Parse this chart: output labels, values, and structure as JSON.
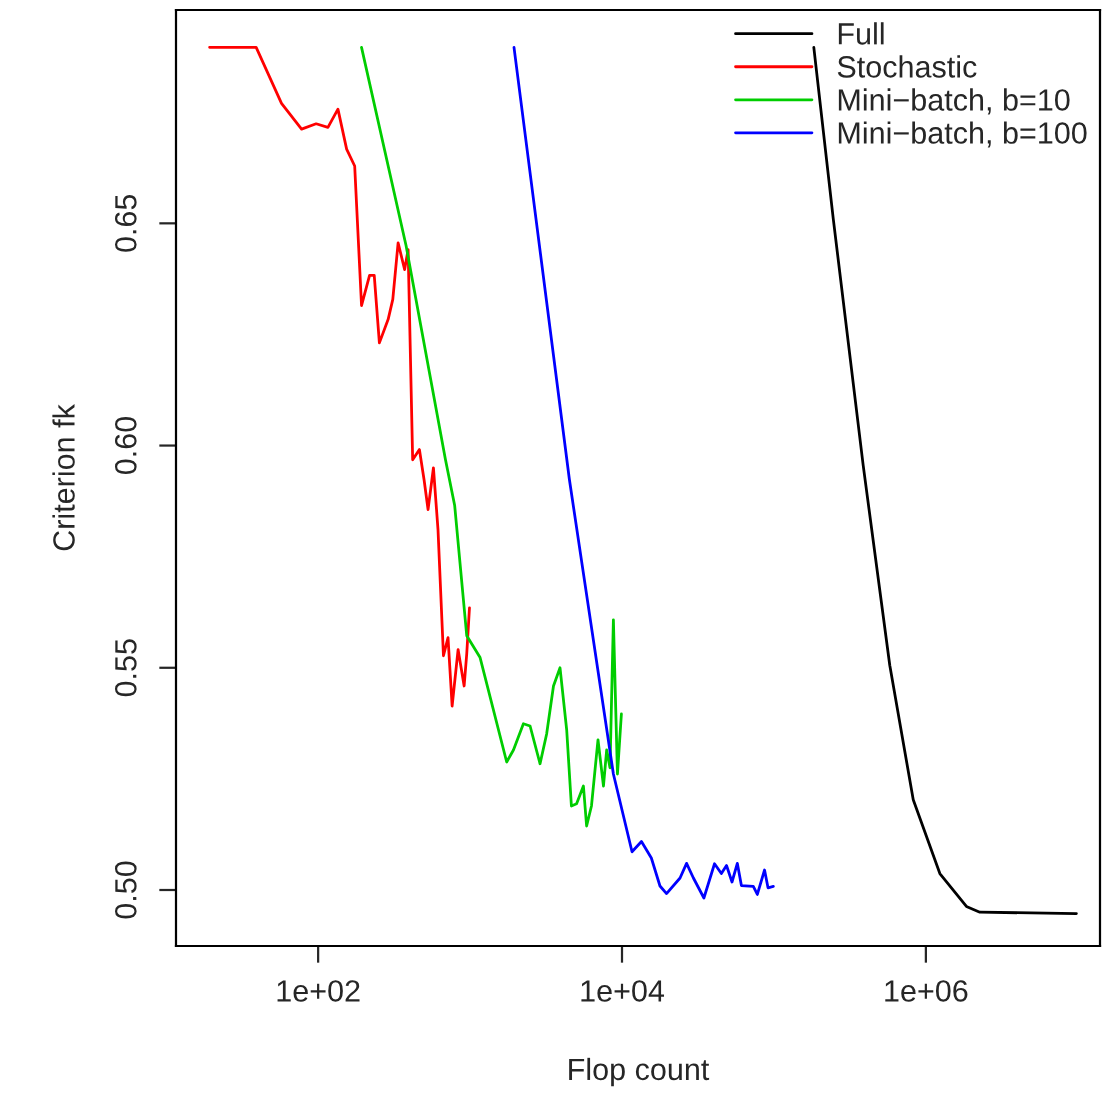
{
  "chart_data": {
    "type": "line",
    "xlabel": "Flop count",
    "ylabel": "Criterion fk",
    "log": "x",
    "xlim": [
      11.6,
      14000000
    ],
    "ylim": [
      0.4874,
      0.698
    ],
    "xticks": [
      {
        "value": 100,
        "label": "1e+02"
      },
      {
        "value": 10000,
        "label": "1e+04"
      },
      {
        "value": 1000000,
        "label": "1e+06"
      }
    ],
    "yticks": [
      {
        "value": 0.5,
        "label": "0.50"
      },
      {
        "value": 0.55,
        "label": "0.55"
      },
      {
        "value": 0.6,
        "label": "0.60"
      },
      {
        "value": 0.65,
        "label": "0.65"
      }
    ],
    "grid": false,
    "legend": "top right",
    "marker": "none",
    "line_style": "solid",
    "series": [
      {
        "name": "Full",
        "color": "#000000",
        "x": [
          183000,
          246000,
          387000,
          579000,
          826000,
          1236000,
          1849000,
          2265000,
          9790000
        ],
        "values": [
          0.6896,
          0.6509,
          0.5955,
          0.5505,
          0.5203,
          0.5037,
          0.4963,
          0.495,
          0.4947
        ]
      },
      {
        "name": "Stochastic",
        "color": "#ff0000",
        "x": [
          19.3,
          39.1,
          57.4,
          77.8,
          97.0,
          116,
          135,
          154,
          174,
          193,
          218,
          234,
          253,
          289,
          310,
          336,
          371,
          391,
          419,
          464,
          498,
          529,
          574,
          615,
          668,
          716,
          762,
          834,
          914,
          951,
          991
        ],
        "values": [
          0.6896,
          0.6896,
          0.677,
          0.6712,
          0.6724,
          0.6716,
          0.6757,
          0.6667,
          0.6629,
          0.6315,
          0.6383,
          0.6383,
          0.6231,
          0.6284,
          0.6329,
          0.6456,
          0.6396,
          0.6441,
          0.5968,
          0.5991,
          0.5923,
          0.5856,
          0.595,
          0.5811,
          0.5527,
          0.5568,
          0.5414,
          0.5541,
          0.5459,
          0.5532,
          0.5635
        ]
      },
      {
        "name": "Mini−batch, b=10",
        "color": "#00cd00",
        "x": [
          193,
          379,
          689,
          792,
          951,
          1164,
          1742,
          1930,
          2244,
          2483,
          2888,
          3191,
          3540,
          3909,
          4325,
          4645,
          5024,
          5572,
          5848,
          6295,
          6950,
          7551,
          7925,
          8337,
          8777,
          9333,
          9908
        ],
        "values": [
          0.6896,
          0.645,
          0.5968,
          0.5865,
          0.5572,
          0.5523,
          0.5288,
          0.5315,
          0.5374,
          0.5369,
          0.5284,
          0.5351,
          0.5459,
          0.55,
          0.536,
          0.5189,
          0.5194,
          0.5234,
          0.5144,
          0.5189,
          0.5338,
          0.5234,
          0.5315,
          0.5275,
          0.5608,
          0.5261,
          0.5396
        ]
      },
      {
        "name": "Mini−batch, b=100",
        "color": "#0000ff",
        "x": [
          1946,
          4508,
          8777,
          11640,
          13430,
          15600,
          17780,
          19640,
          24100,
          26610,
          29510,
          34600,
          40640,
          45080,
          48750,
          52970,
          57410,
          61070,
          73150,
          77770,
          86740,
          91400,
          99100
        ],
        "values": [
          0.6896,
          0.5923,
          0.5261,
          0.5086,
          0.5109,
          0.5072,
          0.5009,
          0.4992,
          0.5027,
          0.506,
          0.5027,
          0.4982,
          0.5059,
          0.5037,
          0.5055,
          0.5018,
          0.506,
          0.501,
          0.5008,
          0.499,
          0.5045,
          0.5005,
          0.5008
        ]
      }
    ]
  }
}
